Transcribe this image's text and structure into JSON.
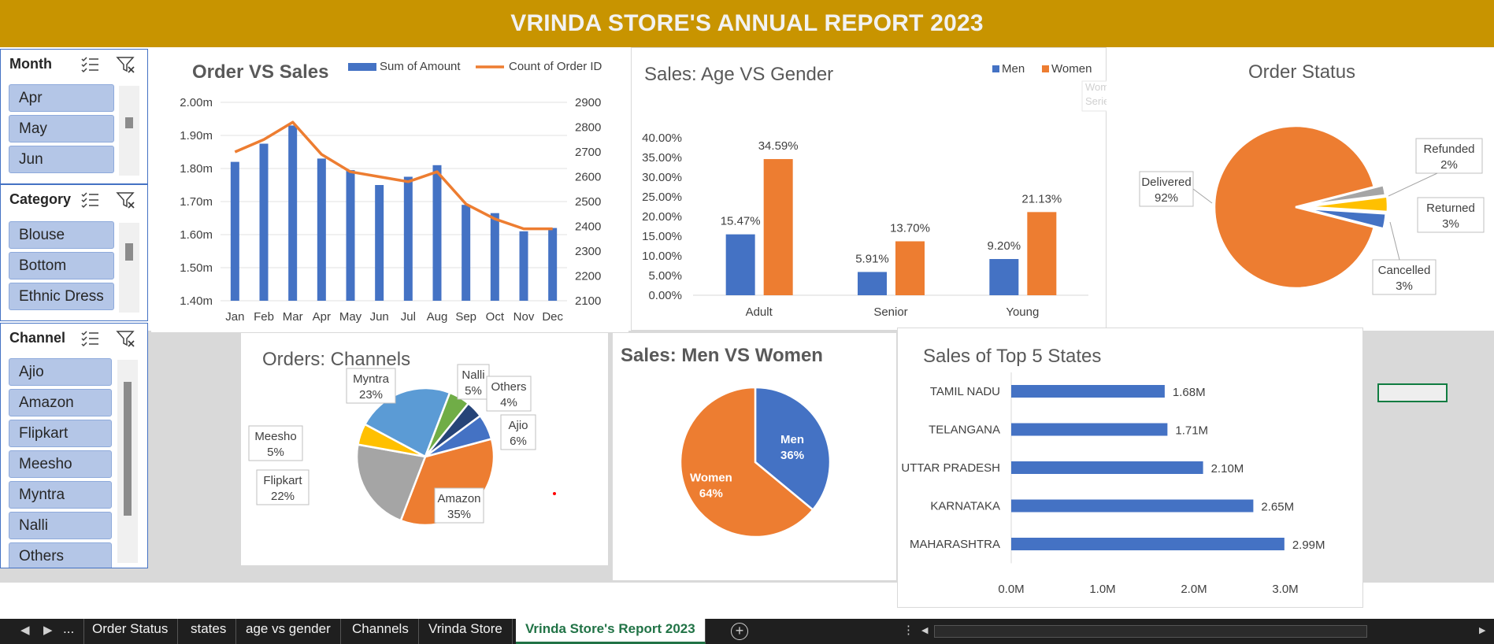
{
  "header": {
    "title": "VRINDA STORE'S ANNUAL REPORT 2023"
  },
  "slicers": {
    "month": {
      "title": "Month",
      "items": [
        "Apr",
        "May",
        "Jun"
      ]
    },
    "category": {
      "title": "Category",
      "items": [
        "Blouse",
        "Bottom",
        "Ethnic Dress"
      ]
    },
    "channel": {
      "title": "Channel",
      "items": [
        "Ajio",
        "Amazon",
        "Flipkart",
        "Meesho",
        "Myntra",
        "Nalli",
        "Others"
      ]
    }
  },
  "tabs": {
    "ellipsis": "...",
    "items": [
      "Order Status",
      "states",
      "age vs gender",
      "Channels",
      "Vrinda Store"
    ],
    "active": "Vrinda Store's Report 2023"
  },
  "colors": {
    "blue": "#4472c4",
    "orange": "#ed7d31",
    "gold": "#ffc000",
    "grey": "#a5a5a5",
    "lightblue": "#5b9bd5",
    "green": "#70ad47",
    "navy": "#264478",
    "header": "#c89400"
  },
  "chart_data": [
    {
      "id": "order_vs_sales",
      "type": "bar",
      "title": "Order VS Sales",
      "categories": [
        "Jan",
        "Feb",
        "Mar",
        "Apr",
        "May",
        "Jun",
        "Jul",
        "Aug",
        "Sep",
        "Oct",
        "Nov",
        "Dec"
      ],
      "series": [
        {
          "name": "Sum of Amount",
          "type": "bar",
          "axis": "left",
          "values": [
            1.82,
            1.875,
            1.93,
            1.83,
            1.795,
            1.75,
            1.775,
            1.81,
            1.69,
            1.665,
            1.61,
            1.62
          ]
        },
        {
          "name": "Count of Order ID",
          "type": "line",
          "axis": "right",
          "values": [
            2700,
            2750,
            2820,
            2690,
            2620,
            2600,
            2580,
            2620,
            2490,
            2430,
            2390,
            2390
          ]
        }
      ],
      "yticks_left": [
        "1.40m",
        "1.50m",
        "1.60m",
        "1.70m",
        "1.80m",
        "1.90m",
        "2.00m"
      ],
      "yticks_right": [
        "2100",
        "2200",
        "2300",
        "2400",
        "2500",
        "2600",
        "2700",
        "2800",
        "2900"
      ],
      "ylim_left": [
        1.4,
        2.0
      ],
      "ylim_right": [
        2100,
        2900
      ],
      "legend": "top"
    },
    {
      "id": "age_vs_gender",
      "type": "bar",
      "title": "Sales: Age VS Gender",
      "categories": [
        "Adult",
        "Senior",
        "Young"
      ],
      "series": [
        {
          "name": "Men",
          "values": [
            15.47,
            5.91,
            9.2
          ],
          "labels": [
            "15.47%",
            "5.91%",
            "9.20%"
          ]
        },
        {
          "name": "Women",
          "values": [
            34.59,
            13.7,
            21.13
          ],
          "labels": [
            "34.59%",
            "13.70%",
            "21.13%"
          ]
        }
      ],
      "yticks": [
        "0.00%",
        "5.00%",
        "10.00%",
        "15.00%",
        "20.00%",
        "25.00%",
        "30.00%",
        "35.00%",
        "40.00%"
      ],
      "ylim": [
        0,
        40
      ],
      "legend": "top-right",
      "tooltip": [
        "Women (Gender)",
        "Series: Women"
      ]
    },
    {
      "id": "order_status",
      "type": "pie",
      "title": "Order Status",
      "slices": [
        {
          "name": "Delivered",
          "value": 92,
          "label": "92%"
        },
        {
          "name": "Refunded",
          "value": 2,
          "label": "2%"
        },
        {
          "name": "Returned",
          "value": 3,
          "label": "3%"
        },
        {
          "name": "Cancelled",
          "value": 3,
          "label": "3%"
        }
      ]
    },
    {
      "id": "orders_channels",
      "type": "pie",
      "title": "Orders: Channels",
      "slices": [
        {
          "name": "Amazon",
          "value": 35,
          "label": "35%"
        },
        {
          "name": "Flipkart",
          "value": 22,
          "label": "22%"
        },
        {
          "name": "Meesho",
          "value": 5,
          "label": "5%"
        },
        {
          "name": "Myntra",
          "value": 23,
          "label": "23%"
        },
        {
          "name": "Nalli",
          "value": 5,
          "label": "5%"
        },
        {
          "name": "Others",
          "value": 4,
          "label": "4%"
        },
        {
          "name": "Ajio",
          "value": 6,
          "label": "6%"
        }
      ]
    },
    {
      "id": "men_vs_women",
      "type": "pie",
      "title": "Sales: Men VS Women",
      "slices": [
        {
          "name": "Men",
          "value": 36,
          "label": "36%"
        },
        {
          "name": "Women",
          "value": 64,
          "label": "64%"
        }
      ]
    },
    {
      "id": "top_states",
      "type": "bar",
      "orientation": "horizontal",
      "title": "Sales of Top 5 States",
      "categories": [
        "TAMIL NADU",
        "TELANGANA",
        "UTTAR PRADESH",
        "KARNATAKA",
        "MAHARASHTRA"
      ],
      "values": [
        1.68,
        1.71,
        2.1,
        2.65,
        2.99
      ],
      "labels": [
        "1.68M",
        "1.71M",
        "2.10M",
        "2.65M",
        "2.99M"
      ],
      "xticks": [
        "0.0M",
        "1.0M",
        "2.0M",
        "3.0M"
      ],
      "xlim": [
        0,
        3.0
      ]
    }
  ]
}
